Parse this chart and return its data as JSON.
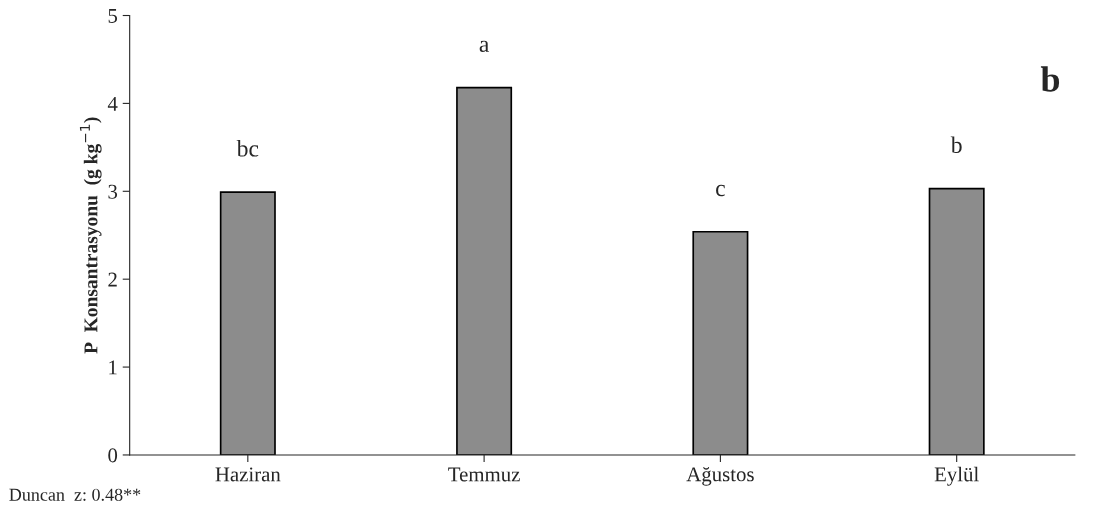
{
  "chart_data": {
    "type": "bar",
    "categories": [
      "Haziran",
      "Temmuz",
      "Ağustos",
      "Eylül"
    ],
    "values": [
      2.99,
      4.18,
      2.54,
      3.03
    ],
    "color": "#8c8c8c",
    "ylabel": "P  Konsantrasyonu  (g kg$^{−1}$)",
    "ylim": [
      0,
      5
    ],
    "yticks": [
      0,
      1,
      2,
      3,
      4,
      5
    ],
    "grid": false,
    "annotations": [
      {
        "text": "bc",
        "x": "Haziran",
        "y": 2.99
      },
      {
        "text": "a",
        "x": "Temmuz",
        "y": 4.18
      },
      {
        "text": "c",
        "x": "Ağustos",
        "y": 2.54
      },
      {
        "text": "b",
        "x": "Eylül",
        "y": 3.03
      },
      "b",
      "Duncan  z: 0.48**"
    ]
  }
}
